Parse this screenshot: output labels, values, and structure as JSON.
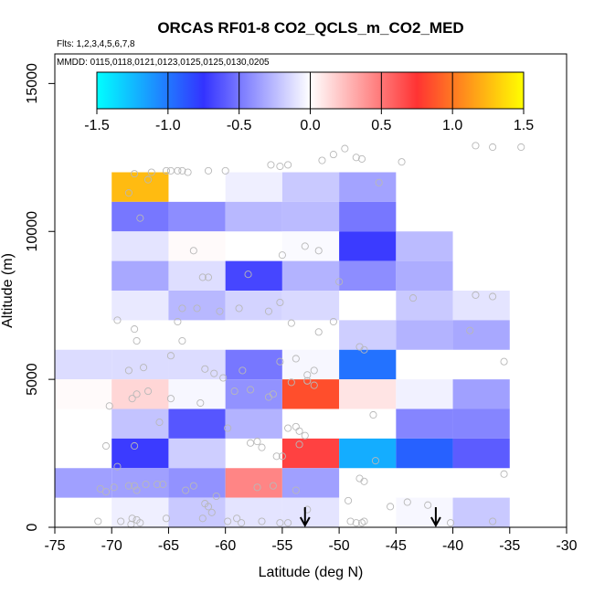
{
  "chart_data": {
    "type": "heatmap",
    "title": "ORCAS RF01-8 CO2_QCLS_m_CO2_MED",
    "subtitle_flights": "Flts: 1,2,3,4,5,6,7,8",
    "subtitle_dates": "MMDD: 0115,0118,0121,0123,0125,0125,0130,0205",
    "xlabel": "Latitude (deg N)",
    "ylabel": "Altitude (m)",
    "xlim": [
      -75,
      -30
    ],
    "ylim": [
      0,
      16000
    ],
    "x_ticks": [
      -75,
      -70,
      -65,
      -60,
      -55,
      -50,
      -45,
      -40,
      -35,
      -30
    ],
    "x_tick_labels": [
      "-75",
      "-70",
      "-65",
      "-60",
      "-55",
      "-50",
      "-45",
      "-40",
      "-35",
      "-30"
    ],
    "y_ticks": [
      0,
      5000,
      10000,
      15000
    ],
    "y_tick_labels": [
      "0",
      "5000",
      "10000",
      "15000"
    ],
    "colorbar": {
      "range": [
        -1.5,
        1.5
      ],
      "ticks": [
        -1.5,
        -1.0,
        -0.5,
        0.0,
        0.5,
        1.0,
        1.5
      ],
      "tick_labels": [
        "-1.5",
        "-1.0",
        "-0.5",
        "0.0",
        "0.5",
        "1.0",
        "1.5"
      ],
      "colors": [
        "#00ffff",
        "#3333ff",
        "#ffffff",
        "#ff3333",
        "#ffff00"
      ]
    },
    "cell_size": {
      "lat": 5,
      "alt": 1000
    },
    "cells": [
      {
        "lat": -67.5,
        "alt": 11500,
        "value": 1.25
      },
      {
        "lat": -57.5,
        "alt": 11500,
        "value": -0.06
      },
      {
        "lat": -52.5,
        "alt": 11500,
        "value": -0.2
      },
      {
        "lat": -47.5,
        "alt": 11500,
        "value": -0.34
      },
      {
        "lat": -67.5,
        "alt": 10500,
        "value": -0.5
      },
      {
        "lat": -62.5,
        "alt": 10500,
        "value": -0.42
      },
      {
        "lat": -57.5,
        "alt": 10500,
        "value": -0.26
      },
      {
        "lat": -52.5,
        "alt": 10500,
        "value": -0.25
      },
      {
        "lat": -47.5,
        "alt": 10500,
        "value": -0.5
      },
      {
        "lat": -67.5,
        "alt": 9500,
        "value": -0.1
      },
      {
        "lat": -62.5,
        "alt": 9500,
        "value": 0.02
      },
      {
        "lat": -52.5,
        "alt": 9500,
        "value": -0.02
      },
      {
        "lat": -47.5,
        "alt": 9500,
        "value": -0.72
      },
      {
        "lat": -42.5,
        "alt": 9500,
        "value": -0.25
      },
      {
        "lat": -67.5,
        "alt": 8500,
        "value": -0.32
      },
      {
        "lat": -62.5,
        "alt": 8500,
        "value": -0.12
      },
      {
        "lat": -57.5,
        "alt": 8500,
        "value": -0.68
      },
      {
        "lat": -52.5,
        "alt": 8500,
        "value": -0.28
      },
      {
        "lat": -47.5,
        "alt": 8500,
        "value": -0.42
      },
      {
        "lat": -42.5,
        "alt": 8500,
        "value": -0.3
      },
      {
        "lat": -67.5,
        "alt": 7500,
        "value": -0.08
      },
      {
        "lat": -62.5,
        "alt": 7500,
        "value": -0.26
      },
      {
        "lat": -57.5,
        "alt": 7500,
        "value": -0.16
      },
      {
        "lat": -52.5,
        "alt": 7500,
        "value": -0.14
      },
      {
        "lat": -42.5,
        "alt": 7500,
        "value": -0.2
      },
      {
        "lat": -37.5,
        "alt": 7500,
        "value": -0.1
      },
      {
        "lat": -47.5,
        "alt": 6500,
        "value": -0.18
      },
      {
        "lat": -42.5,
        "alt": 6500,
        "value": -0.28
      },
      {
        "lat": -37.5,
        "alt": 6500,
        "value": -0.32
      },
      {
        "lat": -72.5,
        "alt": 5500,
        "value": -0.13
      },
      {
        "lat": -67.5,
        "alt": 5500,
        "value": -0.13
      },
      {
        "lat": -62.5,
        "alt": 5500,
        "value": -0.13
      },
      {
        "lat": -57.5,
        "alt": 5500,
        "value": -0.5
      },
      {
        "lat": -52.5,
        "alt": 5500,
        "value": -0.03
      },
      {
        "lat": -47.5,
        "alt": 5500,
        "value": -0.98
      },
      {
        "lat": -72.5,
        "alt": 4500,
        "value": 0.02
      },
      {
        "lat": -67.5,
        "alt": 4500,
        "value": 0.15
      },
      {
        "lat": -62.5,
        "alt": 4500,
        "value": -0.03
      },
      {
        "lat": -57.5,
        "alt": 4500,
        "value": -0.4
      },
      {
        "lat": -52.5,
        "alt": 4500,
        "value": 0.85
      },
      {
        "lat": -47.5,
        "alt": 4500,
        "value": 0.1
      },
      {
        "lat": -42.5,
        "alt": 4500,
        "value": -0.05
      },
      {
        "lat": -37.5,
        "alt": 4500,
        "value": -0.35
      },
      {
        "lat": -67.5,
        "alt": 3500,
        "value": -0.22
      },
      {
        "lat": -62.5,
        "alt": 3500,
        "value": -0.62
      },
      {
        "lat": -57.5,
        "alt": 3500,
        "value": -0.28
      },
      {
        "lat": -42.5,
        "alt": 3500,
        "value": -0.45
      },
      {
        "lat": -37.5,
        "alt": 3500,
        "value": -0.45
      },
      {
        "lat": -67.5,
        "alt": 2500,
        "value": -0.72
      },
      {
        "lat": -62.5,
        "alt": 2500,
        "value": -0.18
      },
      {
        "lat": -52.5,
        "alt": 2500,
        "value": 0.7
      },
      {
        "lat": -47.5,
        "alt": 2500,
        "value": -1.2
      },
      {
        "lat": -42.5,
        "alt": 2500,
        "value": -0.92
      },
      {
        "lat": -37.5,
        "alt": 2500,
        "value": -0.6
      },
      {
        "lat": -72.5,
        "alt": 1500,
        "value": -0.35
      },
      {
        "lat": -67.5,
        "alt": 1500,
        "value": -0.35
      },
      {
        "lat": -62.5,
        "alt": 1500,
        "value": -0.4
      },
      {
        "lat": -57.5,
        "alt": 1500,
        "value": 0.45
      },
      {
        "lat": -52.5,
        "alt": 1500,
        "value": -0.35
      },
      {
        "lat": -67.5,
        "alt": 500,
        "value": -0.06
      },
      {
        "lat": -62.5,
        "alt": 500,
        "value": -0.2
      },
      {
        "lat": -57.5,
        "alt": 500,
        "value": -0.1
      },
      {
        "lat": -52.5,
        "alt": 500,
        "value": -0.1
      },
      {
        "lat": -42.5,
        "alt": 500,
        "value": -0.03
      },
      {
        "lat": -37.5,
        "alt": 500,
        "value": -0.2
      }
    ],
    "arrows_lat": [
      -53,
      -41.5
    ],
    "sample_points": [
      [
        -68,
        11950
      ],
      [
        -66.5,
        12000
      ],
      [
        -65.2,
        12050
      ],
      [
        -64.8,
        12050
      ],
      [
        -64.2,
        12050
      ],
      [
        -63.8,
        12050
      ],
      [
        -63.3,
        12000
      ],
      [
        -61.5,
        12050
      ],
      [
        -60,
        12050
      ],
      [
        -56,
        12250
      ],
      [
        -55.2,
        12200
      ],
      [
        -54.5,
        12250
      ],
      [
        -51.5,
        12400
      ],
      [
        -50.5,
        12600
      ],
      [
        -49.5,
        12800
      ],
      [
        -48.5,
        12500
      ],
      [
        -48,
        12450
      ],
      [
        -46.5,
        11650
      ],
      [
        -44.5,
        12350
      ],
      [
        -34,
        12850
      ],
      [
        -36.5,
        12850
      ],
      [
        -38,
        12900
      ],
      [
        -68.5,
        11300
      ],
      [
        -67.5,
        10450
      ],
      [
        -66.8,
        11750
      ],
      [
        -62.8,
        9350
      ],
      [
        -61.5,
        8450
      ],
      [
        -62,
        8450
      ],
      [
        -58,
        8550
      ],
      [
        -55.2,
        7600
      ],
      [
        -55,
        9200
      ],
      [
        -53,
        9500
      ],
      [
        -51.8,
        9350
      ],
      [
        -50,
        8300
      ],
      [
        -43.5,
        7750
      ],
      [
        -38,
        7850
      ],
      [
        -36.5,
        7800
      ],
      [
        -64.2,
        6950
      ],
      [
        -60.5,
        7300
      ],
      [
        -58.8,
        7400
      ],
      [
        -56.2,
        7300
      ],
      [
        -63.8,
        7400
      ],
      [
        -62.5,
        7400
      ],
      [
        -69.5,
        7000
      ],
      [
        -68,
        6700
      ],
      [
        -67.8,
        6300
      ],
      [
        -63.8,
        6300
      ],
      [
        -54.2,
        6900
      ],
      [
        -51.8,
        6600
      ],
      [
        -50.5,
        6950
      ],
      [
        -47.8,
        6000
      ],
      [
        -48.2,
        6100
      ],
      [
        -38.5,
        6650
      ],
      [
        -35.5,
        5600
      ],
      [
        -64.8,
        5800
      ],
      [
        -68.5,
        5300
      ],
      [
        -67.2,
        5400
      ],
      [
        -61.8,
        5350
      ],
      [
        -61,
        5200
      ],
      [
        -60.2,
        5050
      ],
      [
        -58.5,
        5300
      ],
      [
        -55.2,
        5600
      ],
      [
        -54.2,
        4900
      ],
      [
        -52.8,
        5150
      ],
      [
        -52.2,
        5300
      ],
      [
        -53.8,
        5700
      ],
      [
        -52.2,
        4800
      ],
      [
        -52.8,
        4950
      ],
      [
        -68.2,
        4350
      ],
      [
        -67.8,
        4500
      ],
      [
        -66.8,
        4600
      ],
      [
        -70.2,
        4100
      ],
      [
        -64.8,
        4350
      ],
      [
        -62.2,
        4200
      ],
      [
        -56.2,
        4400
      ],
      [
        -55.8,
        4500
      ],
      [
        -57.8,
        4650
      ],
      [
        -59.2,
        4600
      ],
      [
        -52.8,
        4950
      ],
      [
        -47,
        3800
      ],
      [
        -53.8,
        3400
      ],
      [
        -54.5,
        3350
      ],
      [
        -53.5,
        3250
      ],
      [
        -65.8,
        3550
      ],
      [
        -59.8,
        3350
      ],
      [
        -57.8,
        2850
      ],
      [
        -57.2,
        2900
      ],
      [
        -56.8,
        2700
      ],
      [
        -55.5,
        2400
      ],
      [
        -55,
        2400
      ],
      [
        -53.5,
        2800
      ],
      [
        -53,
        3100
      ],
      [
        -68,
        2750
      ],
      [
        -70.5,
        2750
      ],
      [
        -69.5,
        2050
      ],
      [
        -71,
        1300
      ],
      [
        -70.5,
        1200
      ],
      [
        -69.8,
        1350
      ],
      [
        -68.5,
        1400
      ],
      [
        -68,
        1400
      ],
      [
        -67,
        1450
      ],
      [
        -66,
        1450
      ],
      [
        -65.5,
        1450
      ],
      [
        -67.8,
        1250
      ],
      [
        -62.8,
        1400
      ],
      [
        -63.5,
        1250
      ],
      [
        -60.8,
        1050
      ],
      [
        -57.2,
        1350
      ],
      [
        -55.8,
        1400
      ],
      [
        -53.8,
        1250
      ],
      [
        -49.2,
        900
      ],
      [
        -48.2,
        1650
      ],
      [
        -47.8,
        1550
      ],
      [
        -46.8,
        2250
      ],
      [
        -35.5,
        1800
      ],
      [
        -71.2,
        200
      ],
      [
        -69.2,
        200
      ],
      [
        -68.2,
        300
      ],
      [
        -67.8,
        250
      ],
      [
        -67.5,
        150
      ],
      [
        -68.3,
        100
      ],
      [
        -65.2,
        300
      ],
      [
        -62,
        300
      ],
      [
        -59,
        300
      ],
      [
        -56.8,
        200
      ],
      [
        -55.2,
        150
      ],
      [
        -54.5,
        150
      ],
      [
        -52.8,
        600
      ],
      [
        -49,
        200
      ],
      [
        -48.5,
        150
      ],
      [
        -48,
        150
      ],
      [
        -47.8,
        200
      ],
      [
        -45.5,
        700
      ],
      [
        -44,
        850
      ],
      [
        -42.2,
        750
      ],
      [
        -40.2,
        150
      ],
      [
        -36.5,
        200
      ],
      [
        -61.5,
        700
      ],
      [
        -61.8,
        800
      ],
      [
        -61.2,
        500
      ],
      [
        -59.8,
        200
      ],
      [
        -58.6,
        150
      ]
    ]
  }
}
